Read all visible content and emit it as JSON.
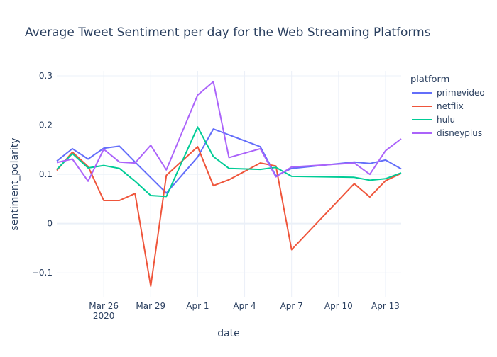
{
  "chart_data": {
    "type": "line",
    "title": "Average Tweet Sentiment per day for the Web Streaming Platforms",
    "xlabel": "date",
    "ylabel": "sentiment_polarity",
    "legend_title": "platform",
    "legend_position": "right",
    "grid": true,
    "xlim": [
      "2020-03-23",
      "2020-04-14"
    ],
    "ylim": [
      -0.15,
      0.31
    ],
    "x_ticks": [
      {
        "x": "2020-03-26",
        "label": "Mar 26",
        "sublabel": "2020"
      },
      {
        "x": "2020-03-29",
        "label": "Mar 29"
      },
      {
        "x": "2020-04-01",
        "label": "Apr 1"
      },
      {
        "x": "2020-04-04",
        "label": "Apr 4"
      },
      {
        "x": "2020-04-07",
        "label": "Apr 7"
      },
      {
        "x": "2020-04-10",
        "label": "Apr 10"
      },
      {
        "x": "2020-04-13",
        "label": "Apr 13"
      }
    ],
    "y_ticks": [
      {
        "y": -0.1,
        "label": "−0.1"
      },
      {
        "y": 0,
        "label": "0"
      },
      {
        "y": 0.1,
        "label": "0.1"
      },
      {
        "y": 0.2,
        "label": "0.2"
      },
      {
        "y": 0.3,
        "label": "0.3"
      }
    ],
    "series": [
      {
        "name": "primevideo",
        "color": "#636efa",
        "points": [
          [
            "2020-03-23",
            0.127
          ],
          [
            "2020-03-24",
            0.152
          ],
          [
            "2020-03-25",
            0.131
          ],
          [
            "2020-03-26",
            0.153
          ],
          [
            "2020-03-27",
            0.157
          ],
          [
            "2020-03-28",
            0.125
          ],
          [
            "2020-03-30",
            0.062
          ],
          [
            "2020-04-01",
            0.135
          ],
          [
            "2020-04-02",
            0.192
          ],
          [
            "2020-04-05",
            0.156
          ],
          [
            "2020-04-06",
            0.097
          ],
          [
            "2020-04-07",
            0.112
          ],
          [
            "2020-04-11",
            0.125
          ],
          [
            "2020-04-12",
            0.122
          ],
          [
            "2020-04-13",
            0.129
          ],
          [
            "2020-04-14",
            0.111
          ]
        ]
      },
      {
        "name": "netflix",
        "color": "#ef553b",
        "points": [
          [
            "2020-03-23",
            0.108
          ],
          [
            "2020-03-24",
            0.145
          ],
          [
            "2020-03-25",
            0.116
          ],
          [
            "2020-03-26",
            0.047
          ],
          [
            "2020-03-27",
            0.047
          ],
          [
            "2020-03-28",
            0.061
          ],
          [
            "2020-03-29",
            -0.127
          ],
          [
            "2020-03-30",
            0.098
          ],
          [
            "2020-04-01",
            0.156
          ],
          [
            "2020-04-02",
            0.077
          ],
          [
            "2020-04-03",
            0.089
          ],
          [
            "2020-04-05",
            0.123
          ],
          [
            "2020-04-06",
            0.117
          ],
          [
            "2020-04-07",
            -0.053
          ],
          [
            "2020-04-11",
            0.081
          ],
          [
            "2020-04-12",
            0.054
          ],
          [
            "2020-04-13",
            0.087
          ],
          [
            "2020-04-14",
            0.102
          ]
        ]
      },
      {
        "name": "hulu",
        "color": "#00cc96",
        "points": [
          [
            "2020-03-23",
            0.11
          ],
          [
            "2020-03-24",
            0.142
          ],
          [
            "2020-03-25",
            0.113
          ],
          [
            "2020-03-26",
            0.118
          ],
          [
            "2020-03-27",
            0.112
          ],
          [
            "2020-03-28",
            0.086
          ],
          [
            "2020-03-29",
            0.057
          ],
          [
            "2020-03-30",
            0.055
          ],
          [
            "2020-04-01",
            0.196
          ],
          [
            "2020-04-02",
            0.136
          ],
          [
            "2020-04-03",
            0.112
          ],
          [
            "2020-04-05",
            0.11
          ],
          [
            "2020-04-06",
            0.114
          ],
          [
            "2020-04-07",
            0.096
          ],
          [
            "2020-04-11",
            0.094
          ],
          [
            "2020-04-12",
            0.088
          ],
          [
            "2020-04-13",
            0.091
          ],
          [
            "2020-04-14",
            0.103
          ]
        ]
      },
      {
        "name": "disneyplus",
        "color": "#ab63fa",
        "points": [
          [
            "2020-03-23",
            0.124
          ],
          [
            "2020-03-24",
            0.131
          ],
          [
            "2020-03-25",
            0.086
          ],
          [
            "2020-03-26",
            0.151
          ],
          [
            "2020-03-27",
            0.125
          ],
          [
            "2020-03-28",
            0.123
          ],
          [
            "2020-03-29",
            0.159
          ],
          [
            "2020-03-30",
            0.109
          ],
          [
            "2020-04-01",
            0.261
          ],
          [
            "2020-04-02",
            0.288
          ],
          [
            "2020-04-03",
            0.134
          ],
          [
            "2020-04-05",
            0.152
          ],
          [
            "2020-04-06",
            0.095
          ],
          [
            "2020-04-07",
            0.115
          ],
          [
            "2020-04-11",
            0.123
          ],
          [
            "2020-04-12",
            0.1
          ],
          [
            "2020-04-13",
            0.148
          ],
          [
            "2020-04-14",
            0.172
          ]
        ]
      }
    ]
  }
}
